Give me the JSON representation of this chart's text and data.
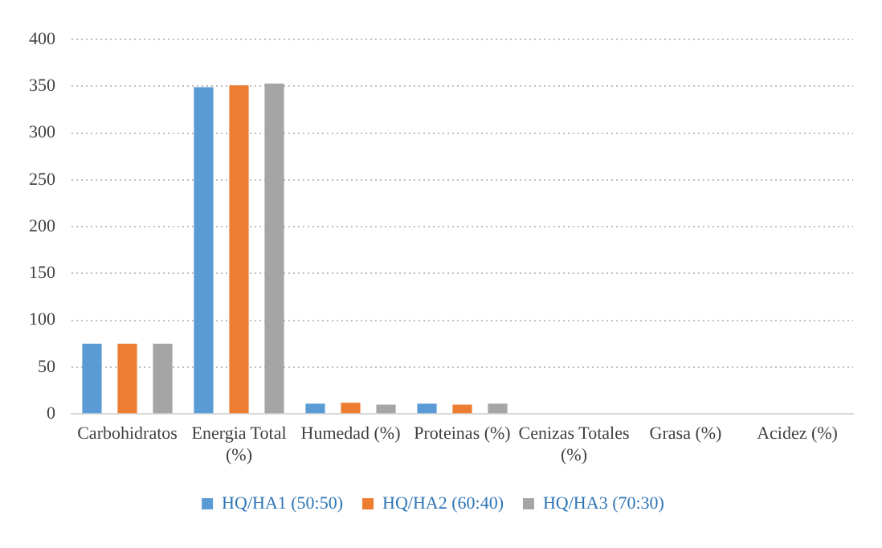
{
  "chart_data": {
    "type": "bar",
    "categories": [
      "Carbohidratos",
      "Energia Total (%)",
      "Humedad (%)",
      "Proteinas (%)",
      "Cenizas Totales (%)",
      "Grasa (%)",
      "Acidez (%)"
    ],
    "series": [
      {
        "name": "HQ/HA1 (50:50)",
        "color": "#5b9bd5",
        "values": [
          75,
          349,
          11,
          11,
          0,
          0,
          0
        ]
      },
      {
        "name": "HQ/HA2 (60:40)",
        "color": "#ed7d31",
        "values": [
          75,
          351,
          12,
          10,
          0,
          0,
          0
        ]
      },
      {
        "name": "HQ/HA3 (70:30)",
        "color": "#a5a5a5",
        "values": [
          75,
          353,
          10,
          11,
          0,
          0,
          0
        ]
      }
    ],
    "ylim": [
      0,
      400
    ],
    "yticks": [
      0,
      50,
      100,
      150,
      200,
      250,
      300,
      350,
      400
    ],
    "grid": "y",
    "legend": "bottom"
  }
}
